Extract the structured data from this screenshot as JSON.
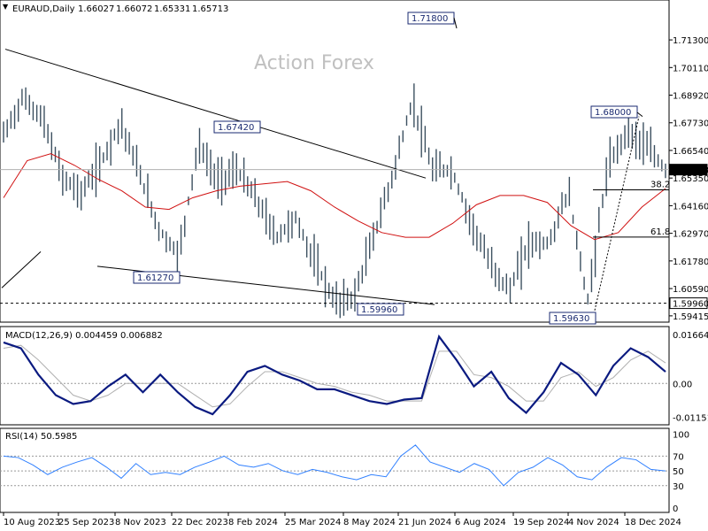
{
  "chart_data": [
    {
      "type": "candlestick",
      "header": {
        "symbol_label": "EURAUD,Daily",
        "ohlc": [
          "1.66027",
          "1.66072",
          "1.65331",
          "1.65713"
        ]
      },
      "watermark": "Action Forex",
      "y_axis": {
        "ticks": [
          "1.71300",
          "1.70110",
          "1.68920",
          "1.67730",
          "1.66540",
          "1.65350",
          "1.64160",
          "1.62970",
          "1.61780",
          "1.60590",
          "1.59415"
        ],
        "tick_values": [
          1.713,
          1.7011,
          1.6892,
          1.6773,
          1.6654,
          1.6535,
          1.6416,
          1.6297,
          1.6178,
          1.6059,
          1.59415
        ],
        "range": [
          1.5922,
          1.7218
        ]
      },
      "current_price": {
        "value": 1.65713,
        "label": "1.65713",
        "color": "#000000"
      },
      "support_line": {
        "value": 1.5996,
        "label": "1.59960",
        "style": "dashed"
      },
      "moving_average": {
        "color": "#d01010",
        "values": [
          1.645,
          1.661,
          1.664,
          1.659,
          1.653,
          1.648,
          1.641,
          1.64,
          1.645,
          1.648,
          1.65,
          1.651,
          1.652,
          1.648,
          1.641,
          1.635,
          1.63,
          1.628,
          1.628,
          1.634,
          1.642,
          1.646,
          1.646,
          1.643,
          1.633,
          1.627,
          1.63,
          1.641,
          1.649
        ]
      },
      "price_series": {
        "color": "#3c5060",
        "closes": [
          1.672,
          1.688,
          1.679,
          1.654,
          1.647,
          1.66,
          1.678,
          1.655,
          1.631,
          1.62,
          1.668,
          1.652,
          1.657,
          1.644,
          1.628,
          1.636,
          1.617,
          1.6,
          1.602,
          1.628,
          1.655,
          1.687,
          1.657,
          1.657,
          1.635,
          1.616,
          1.605,
          1.626,
          1.625,
          1.648,
          1.6,
          1.657,
          1.674,
          1.667,
          1.657
        ]
      },
      "annotations": [
        {
          "label": "1.71800",
          "value": 1.718
        },
        {
          "label": "1.67420",
          "value": 1.6742
        },
        {
          "label": "1.61270",
          "value": 1.6127
        },
        {
          "label": "1.59960",
          "value": 1.5996
        },
        {
          "label": "1.68000",
          "value": 1.68
        },
        {
          "label": "1.59630",
          "value": 1.5963
        }
      ],
      "fib_levels": [
        {
          "label": "38.2",
          "value": 1.6484
        },
        {
          "label": "61.8",
          "value": 1.6281
        }
      ],
      "x_axis": {
        "labels": [
          "10 Aug 2023",
          "25 Sep 2023",
          "8 Nov 2023",
          "22 Dec 2023",
          "8 Feb 2024",
          "25 Mar 2024",
          "8 May 2024",
          "21 Jun 2024",
          "6 Aug 2024",
          "19 Sep 2024",
          "4 Nov 2024",
          "18 Dec 2024"
        ]
      }
    },
    {
      "type": "line",
      "title": "MACD(12,26,9) 0.004459 0.006882",
      "y_axis": {
        "ticks": [
          "0.01664",
          "0.00",
          "-0.011515"
        ],
        "tick_values": [
          0.01664,
          0.0,
          -0.011515
        ],
        "range": [
          -0.0135,
          0.0185
        ]
      },
      "series": [
        {
          "color": "#0a1a80",
          "values": [
            0.014,
            0.012,
            0.003,
            -0.004,
            -0.007,
            -0.006,
            -0.001,
            0.003,
            -0.003,
            0.003,
            -0.003,
            -0.008,
            -0.0105,
            -0.004,
            0.004,
            0.006,
            0.003,
            0.001,
            -0.002,
            -0.002,
            -0.004,
            -0.006,
            -0.007,
            -0.0055,
            -0.005,
            0.016,
            0.008,
            -0.001,
            0.004,
            -0.005,
            -0.01,
            -0.003,
            0.007,
            0.003,
            -0.004,
            0.006,
            0.012,
            0.009,
            0.004
          ]
        },
        {
          "color": "#b0b0b0",
          "values": [
            0.012,
            0.013,
            0.008,
            0.002,
            -0.004,
            -0.006,
            -0.004,
            0.0,
            0.0,
            0.0,
            0.0,
            -0.004,
            -0.008,
            -0.007,
            -0.001,
            0.004,
            0.004,
            0.002,
            0.0,
            -0.001,
            -0.003,
            -0.004,
            -0.006,
            -0.006,
            -0.006,
            0.011,
            0.011,
            0.003,
            0.002,
            -0.001,
            -0.006,
            -0.006,
            0.002,
            0.004,
            -0.001,
            0.002,
            0.008,
            0.011,
            0.007
          ]
        }
      ]
    },
    {
      "type": "line",
      "title": "RSI(14) 50.5985",
      "y_axis": {
        "ticks": [
          "100",
          "70",
          "50",
          "30",
          "0"
        ],
        "tick_values": [
          100,
          70,
          50,
          30,
          0
        ],
        "range": [
          -5,
          104
        ]
      },
      "reference_lines": [
        70,
        50,
        30
      ],
      "series": [
        {
          "color": "#3080ff",
          "values": [
            70,
            68,
            58,
            45,
            55,
            62,
            68,
            55,
            40,
            60,
            45,
            48,
            45,
            55,
            62,
            70,
            58,
            55,
            60,
            50,
            45,
            52,
            48,
            42,
            38,
            45,
            42,
            70,
            85,
            62,
            55,
            48,
            60,
            52,
            30,
            48,
            55,
            68,
            58,
            42,
            38,
            55,
            68,
            65,
            52,
            50
          ]
        }
      ]
    }
  ]
}
